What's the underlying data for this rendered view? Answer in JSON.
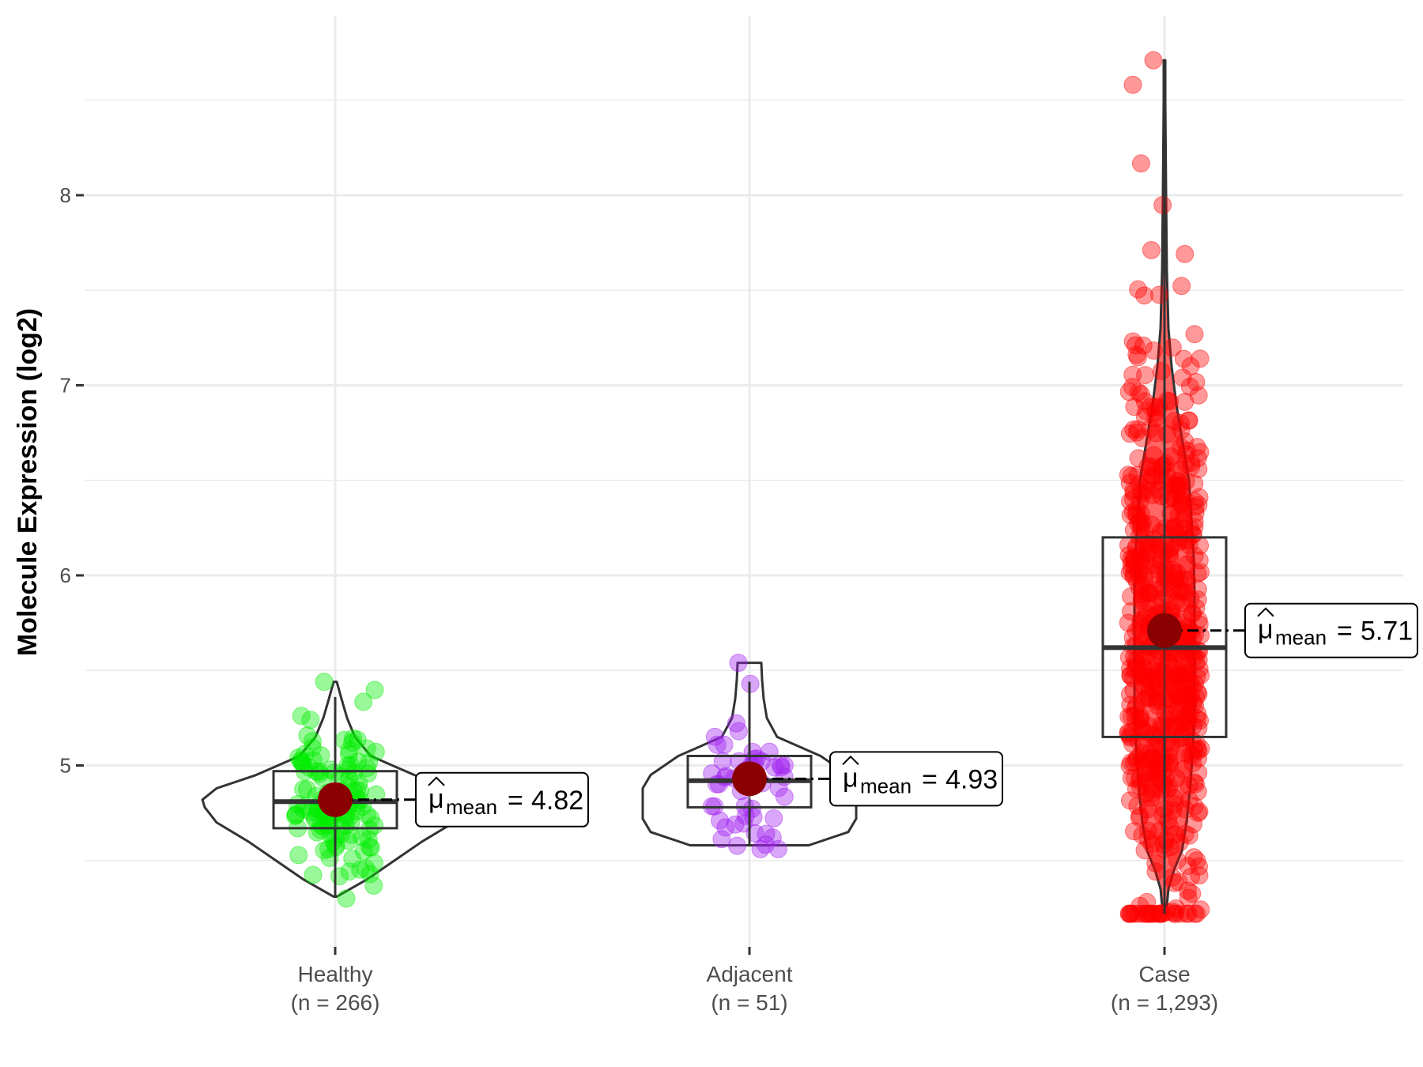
{
  "chart_data": {
    "type": "violin-box-jitter",
    "ylabel": "Molecule Expression (log2)",
    "xlabel": "",
    "ylim": [
      4.0,
      9.0
    ],
    "yticks": [
      5,
      6,
      7,
      8
    ],
    "grid": true,
    "categories": [
      {
        "name": "Healthy",
        "n_label": "(n = 266)",
        "color": "#00ee00",
        "mean": 4.82,
        "mean_label": "4.82",
        "median": 4.81,
        "q1": 4.67,
        "q3": 4.97,
        "whisker_low": 4.31,
        "whisker_high": 5.36,
        "violin_min": 4.31,
        "violin_max": 5.44,
        "points_min": 4.3,
        "points_max": 5.44,
        "n_points": 130
      },
      {
        "name": "Adjacent",
        "n_label": "(n = 51)",
        "color": "#a020f0",
        "mean": 4.93,
        "mean_label": "4.93",
        "median": 4.92,
        "q1": 4.78,
        "q3": 5.05,
        "whisker_low": 4.58,
        "whisker_high": 5.44,
        "violin_min": 4.58,
        "violin_max": 5.54,
        "points_min": 4.56,
        "points_max": 5.54,
        "n_points": 51
      },
      {
        "name": "Case",
        "n_label": "(n = 1,293)",
        "color": "#ff0000",
        "mean": 5.71,
        "mean_label": "5.71",
        "median": 5.62,
        "q1": 5.15,
        "q3": 6.2,
        "whisker_low": 4.22,
        "whisker_high": 8.71,
        "violin_min": 4.22,
        "violin_max": 8.71,
        "points_min": 4.22,
        "points_max": 8.71,
        "n_points": 600
      }
    ],
    "mean_label_prefix": "μ",
    "mean_label_sub": "mean",
    "mean_label_eq": "=",
    "mean_point_color": "#8b0000"
  }
}
